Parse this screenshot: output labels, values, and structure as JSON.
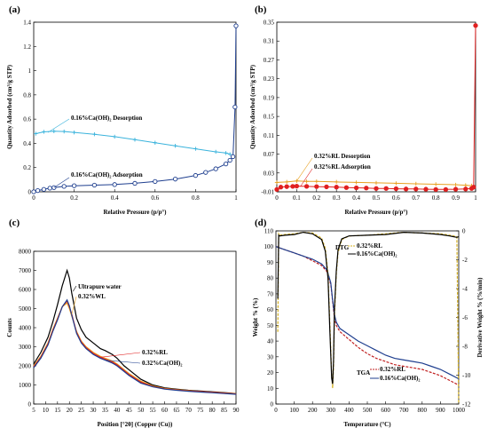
{
  "chart_data": [
    {
      "id": "a",
      "panel_label": "(a)",
      "type": "scatter",
      "xlabel": "Relative Pressure (p/p°)",
      "ylabel": "Quantity Adsorbed (cm³/g STP)",
      "xlim": [
        0,
        1
      ],
      "ylim": [
        0,
        1.4
      ],
      "xticks": [
        "0",
        "0.2",
        "0.4",
        "0.6",
        "0.8",
        "1"
      ],
      "xtick_values": [
        0,
        0.2,
        0.4,
        0.6,
        0.8,
        1
      ],
      "yticks": [
        "0",
        "0.2",
        "0.4",
        "0.6",
        "0.8",
        "1",
        "1.2",
        "1.4"
      ],
      "ytick_values": [
        0,
        0.2,
        0.4,
        0.6,
        0.8,
        1,
        1.2,
        1.4
      ],
      "annotations": [
        "0.16%Ca(OH)₂ Desorption",
        "0.16%Ca(OH)₂ Adsorption"
      ],
      "series": [
        {
          "name": "0.16%Ca(OH)₂ Desorption",
          "color": "#3ab3dc",
          "marker": "plus",
          "x": [
            0.01,
            0.05,
            0.1,
            0.15,
            0.2,
            0.3,
            0.4,
            0.5,
            0.6,
            0.7,
            0.8,
            0.9,
            0.95,
            0.97
          ],
          "y": [
            0.48,
            0.495,
            0.5,
            0.498,
            0.49,
            0.475,
            0.455,
            0.43,
            0.405,
            0.38,
            0.355,
            0.33,
            0.32,
            0.31
          ]
        },
        {
          "name": "0.16%Ca(OH)₂ Adsorption",
          "color": "#1f3f8f",
          "marker": "circle",
          "x": [
            0,
            0.02,
            0.05,
            0.08,
            0.1,
            0.15,
            0.2,
            0.3,
            0.4,
            0.5,
            0.6,
            0.7,
            0.8,
            0.85,
            0.9,
            0.95,
            0.97,
            0.985,
            0.995,
            1.0
          ],
          "y": [
            0.0,
            0.01,
            0.02,
            0.03,
            0.035,
            0.045,
            0.05,
            0.055,
            0.06,
            0.07,
            0.085,
            0.105,
            0.135,
            0.16,
            0.19,
            0.23,
            0.26,
            0.29,
            0.7,
            1.37
          ]
        }
      ]
    },
    {
      "id": "b",
      "panel_label": "(b)",
      "type": "scatter",
      "xlabel": "Relative Pressure (p/p°)",
      "ylabel": "Quantity Adsorbed (cm³/g STP)",
      "xlim": [
        0,
        1
      ],
      "ylim": [
        -0.01,
        0.35
      ],
      "xticks": [
        "0",
        "0.1",
        "0.2",
        "0.3",
        "0.4",
        "0.5",
        "0.6",
        "0.7",
        "0.8",
        "0.9",
        "1"
      ],
      "xtick_values": [
        0,
        0.1,
        0.2,
        0.3,
        0.4,
        0.5,
        0.6,
        0.7,
        0.8,
        0.9,
        1
      ],
      "yticks": [
        "-0.01",
        "0.03",
        "0.07",
        "0.11",
        "0.15",
        "0.19",
        "0.23",
        "0.27",
        "0.31",
        "0.35"
      ],
      "ytick_values": [
        -0.01,
        0.03,
        0.07,
        0.11,
        0.15,
        0.19,
        0.23,
        0.27,
        0.31,
        0.35
      ],
      "annotations": [
        "0.32%RL  Desorption",
        "0.32%RL  Adsorption"
      ],
      "series": [
        {
          "name": "0.32%RL  Desorption",
          "color": "#e8a020",
          "marker": "plus",
          "x": [
            0.0,
            0.05,
            0.1,
            0.15,
            0.2,
            0.3,
            0.4,
            0.5,
            0.6,
            0.7,
            0.8,
            0.9,
            0.95,
            0.98
          ],
          "y": [
            0.01,
            0.011,
            0.013,
            0.012,
            0.012,
            0.011,
            0.01,
            0.009,
            0.008,
            0.007,
            0.006,
            0.005,
            0.004,
            0.003
          ]
        },
        {
          "name": "0.32%RL  Adsorption",
          "color": "#e02020",
          "marker": "circle",
          "x": [
            0.0,
            0.02,
            0.05,
            0.08,
            0.1,
            0.15,
            0.2,
            0.25,
            0.3,
            0.35,
            0.4,
            0.45,
            0.5,
            0.55,
            0.6,
            0.65,
            0.7,
            0.75,
            0.8,
            0.85,
            0.9,
            0.95,
            0.98,
            0.99,
            1.0
          ],
          "y": [
            -0.005,
            0.0,
            0.001,
            0.0015,
            0.002,
            0.0015,
            0.001,
            0.0005,
            0.0,
            -0.001,
            -0.0015,
            -0.002,
            -0.003,
            -0.003,
            -0.0035,
            -0.004,
            -0.004,
            -0.0045,
            -0.005,
            -0.005,
            -0.0045,
            -0.004,
            -0.003,
            0.0,
            0.343
          ]
        }
      ]
    },
    {
      "id": "c",
      "panel_label": "(c)",
      "type": "line",
      "xlabel": "Position [°2θ] (Copper (Cu))",
      "ylabel": "Counts",
      "xlim": [
        5,
        90
      ],
      "ylim": [
        0,
        8000
      ],
      "xticks": [
        "5",
        "10",
        "15",
        "20",
        "25",
        "30",
        "35",
        "40",
        "45",
        "50",
        "55",
        "60",
        "65",
        "70",
        "75",
        "80",
        "85",
        "90"
      ],
      "xtick_values": [
        5,
        10,
        15,
        20,
        25,
        30,
        35,
        40,
        45,
        50,
        55,
        60,
        65,
        70,
        75,
        80,
        85,
        90
      ],
      "yticks": [
        "0",
        "1000",
        "2000",
        "3000",
        "4000",
        "5000",
        "6000",
        "7000",
        "8000"
      ],
      "ytick_values": [
        0,
        1000,
        2000,
        3000,
        4000,
        5000,
        6000,
        7000,
        8000
      ],
      "annotations": [
        "Ultrapure water",
        "0.32%WL",
        "0.32%RL",
        "0.32%Ca(OH)₂"
      ],
      "series": [
        {
          "name": "Ultrapure water",
          "color": "#000000",
          "x": [
            5,
            8,
            11,
            13,
            15,
            17,
            19,
            20,
            21,
            23,
            25,
            27,
            30,
            33,
            35,
            38,
            40,
            43,
            45,
            50,
            55,
            60,
            65,
            70,
            75,
            80,
            85,
            90
          ],
          "y": [
            2100,
            2700,
            3500,
            4300,
            5200,
            6200,
            7000,
            6600,
            5800,
            4500,
            3900,
            3500,
            3200,
            2900,
            2800,
            2600,
            2400,
            2000,
            1800,
            1300,
            1000,
            850,
            780,
            720,
            680,
            640,
            600,
            550
          ]
        },
        {
          "name": "0.32%WL",
          "color": "#e8a020",
          "x": [
            5,
            8,
            11,
            13,
            15,
            17,
            19,
            20,
            21,
            23,
            25,
            27,
            30,
            33,
            35,
            38,
            40,
            43,
            45,
            50,
            55,
            60,
            65,
            70,
            75,
            80,
            85,
            90
          ],
          "y": [
            2000,
            2500,
            3200,
            3900,
            4500,
            5100,
            5300,
            5000,
            4600,
            3800,
            3300,
            3000,
            2700,
            2500,
            2400,
            2250,
            2100,
            1800,
            1600,
            1200,
            950,
            820,
            760,
            700,
            660,
            620,
            580,
            540
          ]
        },
        {
          "name": "0.32%RL",
          "color": "#e02020",
          "x": [
            5,
            8,
            11,
            13,
            15,
            17,
            19,
            20,
            21,
            23,
            25,
            27,
            30,
            33,
            35,
            38,
            40,
            43,
            45,
            50,
            55,
            60,
            65,
            70,
            75,
            80,
            85,
            90
          ],
          "y": [
            1950,
            2450,
            3150,
            3850,
            4450,
            5100,
            5400,
            5100,
            4700,
            3750,
            3250,
            2950,
            2650,
            2450,
            2350,
            2200,
            2050,
            1750,
            1550,
            1150,
            920,
            800,
            740,
            690,
            650,
            610,
            570,
            530
          ]
        },
        {
          "name": "0.32%Ca(OH)₂",
          "color": "#1f3f8f",
          "x": [
            5,
            8,
            11,
            13,
            15,
            17,
            19,
            20,
            21,
            23,
            25,
            27,
            30,
            33,
            35,
            38,
            40,
            43,
            45,
            50,
            55,
            60,
            65,
            70,
            75,
            80,
            85,
            90
          ],
          "y": [
            1900,
            2400,
            3100,
            3800,
            4400,
            5100,
            5450,
            5150,
            4650,
            3700,
            3200,
            2900,
            2600,
            2400,
            2300,
            2150,
            2000,
            1700,
            1500,
            1100,
            900,
            780,
            720,
            670,
            630,
            590,
            550,
            510
          ]
        }
      ]
    },
    {
      "id": "d",
      "panel_label": "(d)",
      "type": "line",
      "xlabel": "Temperature (°C)",
      "ylabel": "Weight % (%)",
      "y2label": "Derivative Weight % (%/min)",
      "xlim": [
        0,
        1000
      ],
      "ylim": [
        0,
        110
      ],
      "y2lim": [
        -12,
        0
      ],
      "xticks": [
        "0",
        "100",
        "200",
        "300",
        "400",
        "500",
        "600",
        "700",
        "800",
        "900",
        "1000"
      ],
      "xtick_values": [
        0,
        100,
        200,
        300,
        400,
        500,
        600,
        700,
        800,
        900,
        1000
      ],
      "yticks": [
        "0",
        "10",
        "20",
        "30",
        "40",
        "50",
        "60",
        "70",
        "80",
        "90",
        "100",
        "110"
      ],
      "ytick_values": [
        0,
        10,
        20,
        30,
        40,
        50,
        60,
        70,
        80,
        90,
        100,
        110
      ],
      "y2ticks": [
        "0",
        "-2",
        "-4",
        "-6",
        "-8",
        "-10",
        "-12"
      ],
      "y2tick_values": [
        0,
        -2,
        -4,
        -6,
        -8,
        -10,
        -12
      ],
      "annotations": [
        "DTG",
        "0.32%RL",
        "0.16%Ca(OH)₂",
        "TGA",
        "0.32%RL",
        "0.16%Ca(OH)₂"
      ],
      "series": [
        {
          "name": "0.32%RL",
          "group": "TGA",
          "color": "#c02020",
          "dash": true,
          "axis": "left",
          "x": [
            0,
            50,
            100,
            150,
            200,
            250,
            280,
            300,
            310,
            320,
            330,
            350,
            400,
            450,
            500,
            550,
            600,
            650,
            700,
            750,
            800,
            850,
            900,
            950,
            1000
          ],
          "y": [
            100,
            98,
            96,
            94,
            91,
            88,
            84,
            76,
            65,
            55,
            50,
            46,
            41,
            36,
            32,
            29,
            27,
            25,
            24,
            23,
            22,
            20,
            18,
            15,
            12
          ]
        },
        {
          "name": "0.16%Ca(OH)₂",
          "group": "TGA",
          "color": "#1f3f8f",
          "dash": false,
          "axis": "left",
          "x": [
            0,
            50,
            100,
            150,
            200,
            250,
            280,
            300,
            310,
            320,
            330,
            350,
            400,
            450,
            500,
            550,
            600,
            650,
            700,
            750,
            800,
            850,
            900,
            950,
            1000
          ],
          "y": [
            100,
            98,
            96,
            94,
            92,
            89,
            85,
            77,
            66,
            57,
            52,
            48,
            44,
            40,
            37,
            34,
            31,
            29,
            28,
            27,
            26,
            24,
            22,
            19,
            16
          ]
        },
        {
          "name": "0.32%RL",
          "group": "DTG",
          "color": "#d4b020",
          "dash": true,
          "axis": "right",
          "x": [
            10,
            15,
            20,
            50,
            100,
            150,
            200,
            250,
            270,
            285,
            295,
            305,
            310,
            315,
            320,
            330,
            340,
            360,
            400,
            500,
            600,
            700,
            800,
            900,
            950,
            990,
            1000
          ],
          "y": [
            -7.0,
            -0.2,
            -0.3,
            -0.25,
            -0.2,
            -0.1,
            -0.15,
            -0.5,
            -1.2,
            -3.0,
            -6.5,
            -10.0,
            -10.9,
            -9.5,
            -6.0,
            -3.0,
            -1.5,
            -0.6,
            -0.35,
            -0.3,
            -0.2,
            -0.1,
            -0.15,
            -0.2,
            -0.3,
            -0.4,
            -12
          ]
        },
        {
          "name": "0.16%Ca(OH)₂",
          "group": "DTG",
          "color": "#000000",
          "dash": false,
          "axis": "right",
          "x": [
            10,
            15,
            20,
            50,
            100,
            150,
            200,
            250,
            270,
            285,
            295,
            305,
            310,
            315,
            320,
            330,
            340,
            360,
            400,
            500,
            600,
            700,
            800,
            900,
            950,
            990,
            1000
          ],
          "y": [
            -4.7,
            -0.3,
            -0.35,
            -0.3,
            -0.25,
            -0.1,
            -0.2,
            -0.6,
            -1.4,
            -3.3,
            -7.0,
            -10.2,
            -10.6,
            -9.0,
            -5.5,
            -2.8,
            -1.3,
            -0.55,
            -0.35,
            -0.3,
            -0.25,
            -0.1,
            -0.15,
            -0.25,
            -0.35,
            -0.45,
            -0.4
          ]
        }
      ]
    }
  ]
}
